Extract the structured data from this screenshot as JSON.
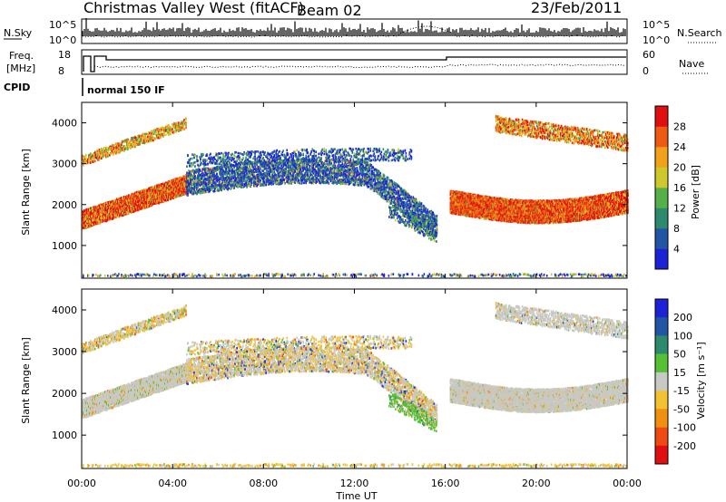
{
  "header": {
    "station": "Christmas Valley West (fitACF)",
    "beam": "Beam 02",
    "date": "23/Feb/2011"
  },
  "strip": {
    "nsky_label": "N.Sky",
    "nsky_ticks": [
      "10^5",
      "10^0"
    ],
    "nsearch_label": "N.Search",
    "nsearch_ticks": [
      "10^5",
      "10^0"
    ],
    "freq_label_1": "Freq.",
    "freq_label_2": "[MHz]",
    "freq_ticks": [
      "18",
      "8"
    ],
    "nave_label": "Nave",
    "nave_ticks": [
      "60",
      "0"
    ],
    "cpid_label": "CPID",
    "cpid_value": "normal 150 IF"
  },
  "chart_data": [
    {
      "type": "heatmap",
      "name": "power",
      "ylabel": "Slant Range [km]",
      "yticks": [
        "1000",
        "2000",
        "3000",
        "4000"
      ],
      "ylim": [
        200,
        4500
      ],
      "colorbar_label": "Power [dB]",
      "colorbar_ticks": [
        "4",
        "8",
        "12",
        "16",
        "20",
        "24",
        "28"
      ],
      "colors": [
        "#1c23d6",
        "#2255a6",
        "#2d8a6d",
        "#55b04a",
        "#cfc82c",
        "#f1a21a",
        "#ef5a12",
        "#e01010"
      ]
    },
    {
      "type": "heatmap",
      "name": "velocity",
      "ylabel": "Slant Range [km]",
      "yticks": [
        "1000",
        "2000",
        "3000",
        "4000"
      ],
      "ylim": [
        200,
        4500
      ],
      "xlabel": "Time UT",
      "xticks": [
        "00:00",
        "04:00",
        "08:00",
        "12:00",
        "16:00",
        "20:00",
        "00:00"
      ],
      "colorbar_label": "Velocity [m s⁻¹]",
      "colorbar_ticks": [
        "200",
        "100",
        "50",
        "15",
        "-15",
        "-50",
        "-100",
        "-200"
      ],
      "colors": [
        "#1c23d6",
        "#2255a6",
        "#2d8a6d",
        "#55c033",
        "#c8c8c4",
        "#f2c232",
        "#ef9010",
        "#ef4a12",
        "#e01010"
      ]
    }
  ]
}
